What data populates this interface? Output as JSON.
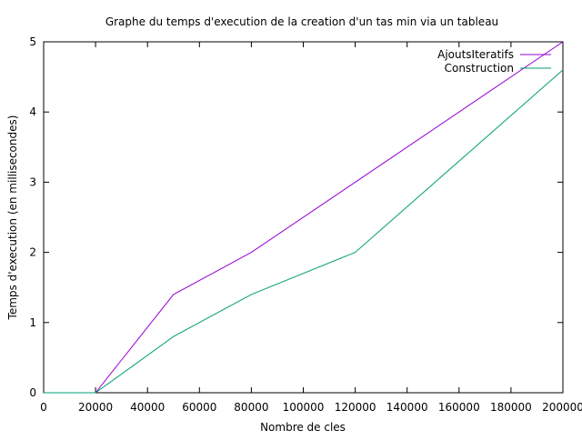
{
  "chart_data": {
    "type": "line",
    "title": "Graphe du temps d'execution de la creation d'un tas min via un tableau",
    "xlabel": "Nombre de cles",
    "ylabel": "Temps d'execution (en millisecondes)",
    "xlim": [
      0,
      200000
    ],
    "ylim": [
      0,
      5
    ],
    "x_ticks": [
      0,
      20000,
      40000,
      60000,
      80000,
      100000,
      120000,
      140000,
      160000,
      180000,
      200000
    ],
    "y_ticks": [
      0,
      1,
      2,
      3,
      4,
      5
    ],
    "grid": false,
    "legend_position": "top-right",
    "series": [
      {
        "name": "AjoutsIteratifs",
        "color": "#9400d3",
        "x": [
          0,
          20000,
          50000,
          80000,
          120000,
          200000
        ],
        "y": [
          0,
          0,
          1.4,
          2,
          3,
          5
        ]
      },
      {
        "name": "Construction",
        "color": "#009e73",
        "x": [
          0,
          20000,
          50000,
          80000,
          120000,
          200000
        ],
        "y": [
          0,
          0,
          0.8,
          1.4,
          2,
          4.6
        ]
      }
    ]
  }
}
